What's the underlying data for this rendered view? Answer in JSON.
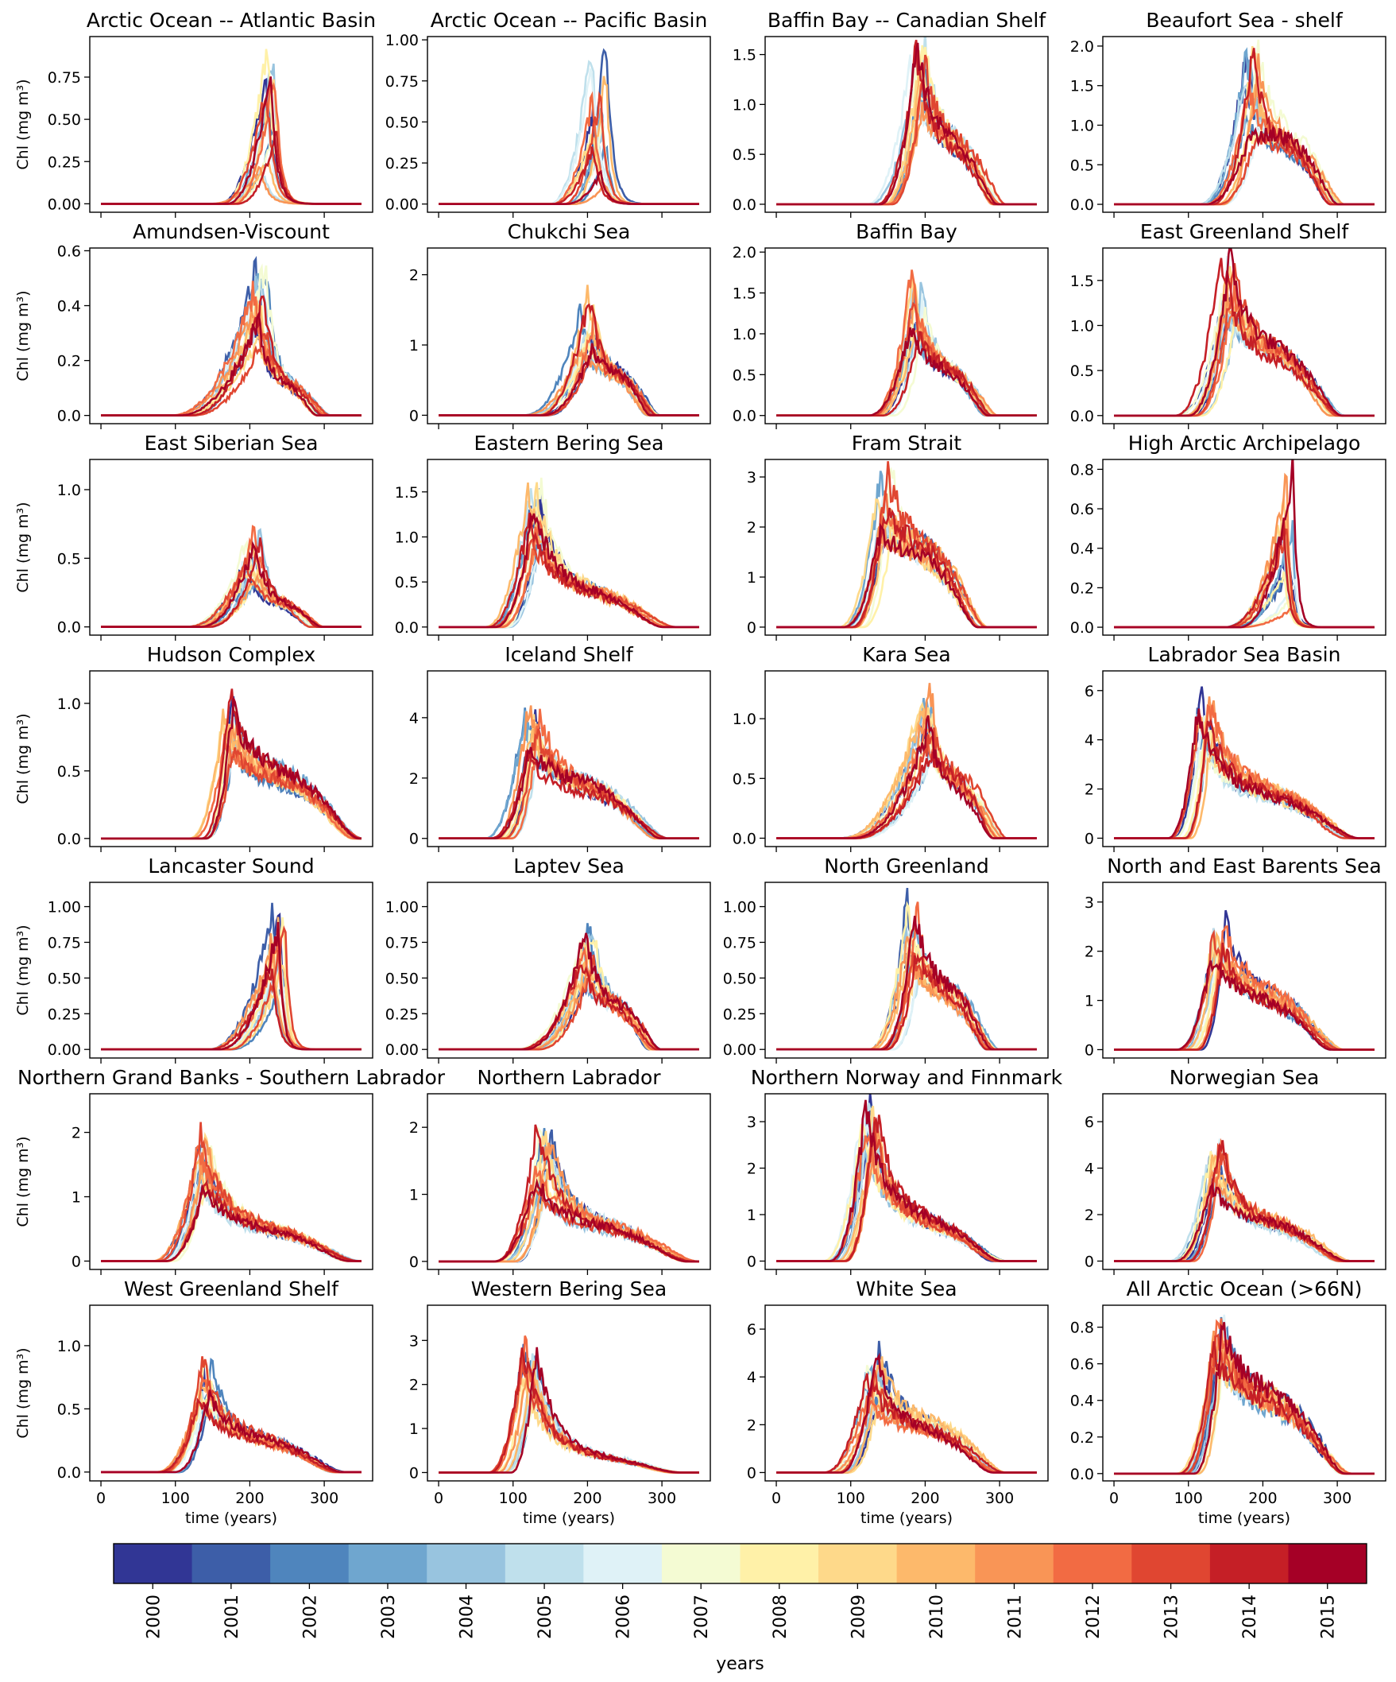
{
  "figure": {
    "colorbar_label": "years",
    "colorbar_ticks": [
      "2000",
      "2001",
      "2002",
      "2003",
      "2004",
      "2005",
      "2006",
      "2007",
      "2008",
      "2009",
      "2010",
      "2011",
      "2012",
      "2013",
      "2014",
      "2015"
    ],
    "colorbar_colors": [
      "#313695",
      "#3d5ea8",
      "#4f85bd",
      "#6fa6cf",
      "#98c4df",
      "#bfe0ec",
      "#dff2f7",
      "#f4fbd3",
      "#fff1a8",
      "#fed98a",
      "#fdb96b",
      "#f99556",
      "#f26b43",
      "#e04631",
      "#c51f26",
      "#a50026"
    ],
    "ylabel_html": "Chl (mg m³)",
    "xlabel": "time (years)"
  },
  "chart_data": [
    {
      "type": "line",
      "title": "Arctic Ocean -- Atlantic Basin",
      "xlabel": "",
      "ylabel": "Chl (mg m3)",
      "xlim": [
        -15,
        365
      ],
      "ylim": [
        -0.05,
        0.99
      ],
      "yticks": [
        "0.00",
        "0.25",
        "0.50",
        "0.75"
      ],
      "ytick_values": [
        0,
        0.25,
        0.5,
        0.75
      ],
      "profile": {
        "onset": 165,
        "peak_day": 225,
        "peak": 0.62,
        "end": 285,
        "tail": 0.0,
        "spread": 0.75
      }
    },
    {
      "type": "line",
      "title": "Arctic Ocean -- Pacific Basin",
      "xlabel": "",
      "ylabel": "",
      "xlim": [
        -15,
        365
      ],
      "ylim": [
        -0.05,
        1.02
      ],
      "yticks": [
        "0.00",
        "0.25",
        "0.50",
        "0.75",
        "1.00"
      ],
      "ytick_values": [
        0,
        0.25,
        0.5,
        0.75,
        1.0
      ],
      "profile": {
        "onset": 165,
        "peak_day": 215,
        "peak": 0.6,
        "end": 275,
        "tail": 0.0,
        "spread": 0.9
      }
    },
    {
      "type": "line",
      "title": "Baffin Bay -- Canadian Shelf",
      "xlabel": "",
      "ylabel": "",
      "xlim": [
        -15,
        365
      ],
      "ylim": [
        -0.08,
        1.68
      ],
      "yticks": [
        "0.0",
        "0.5",
        "1.0",
        "1.5"
      ],
      "ytick_values": [
        0,
        0.5,
        1.0,
        1.5
      ],
      "profile": {
        "onset": 140,
        "peak_day": 190,
        "peak": 1.3,
        "end": 300,
        "tail": 0.5,
        "spread": 0.35
      }
    },
    {
      "type": "line",
      "title": "Beaufort Sea - shelf",
      "xlabel": "",
      "ylabel": "",
      "xlim": [
        -15,
        365
      ],
      "ylim": [
        -0.1,
        2.12
      ],
      "yticks": [
        "0.0",
        "0.5",
        "1.0",
        "1.5",
        "2.0"
      ],
      "ytick_values": [
        0,
        0.5,
        1.0,
        1.5,
        2.0
      ],
      "profile": {
        "onset": 130,
        "peak_day": 185,
        "peak": 1.35,
        "end": 300,
        "tail": 0.6,
        "spread": 0.5
      }
    },
    {
      "type": "line",
      "title": "Amundsen-Viscount",
      "xlabel": "",
      "ylabel": "Chl (mg m3)",
      "xlim": [
        -15,
        365
      ],
      "ylim": [
        -0.03,
        0.61
      ],
      "yticks": [
        "0.0",
        "0.2",
        "0.4",
        "0.6"
      ],
      "ytick_values": [
        0,
        0.2,
        0.4,
        0.6
      ],
      "profile": {
        "onset": 110,
        "peak_day": 215,
        "peak": 0.42,
        "end": 300,
        "tail": 0.3,
        "spread": 0.4
      }
    },
    {
      "type": "line",
      "title": "Chukchi Sea",
      "xlabel": "",
      "ylabel": "",
      "xlim": [
        -15,
        365
      ],
      "ylim": [
        -0.12,
        2.38
      ],
      "yticks": [
        "0",
        "1",
        "2"
      ],
      "ytick_values": [
        0,
        1,
        2
      ],
      "profile": {
        "onset": 130,
        "peak_day": 200,
        "peak": 1.3,
        "end": 290,
        "tail": 0.5,
        "spread": 0.4
      }
    },
    {
      "type": "line",
      "title": "Baffin Bay",
      "xlabel": "",
      "ylabel": "",
      "xlim": [
        -15,
        365
      ],
      "ylim": [
        -0.1,
        2.05
      ],
      "yticks": [
        "0.0",
        "0.5",
        "1.0",
        "1.5",
        "2.0"
      ],
      "ytick_values": [
        0,
        0.5,
        1.0,
        1.5,
        2.0
      ],
      "profile": {
        "onset": 140,
        "peak_day": 190,
        "peak": 1.4,
        "end": 290,
        "tail": 0.4,
        "spread": 0.35
      }
    },
    {
      "type": "line",
      "title": "East Greenland Shelf",
      "xlabel": "",
      "ylabel": "",
      "xlim": [
        -15,
        365
      ],
      "ylim": [
        -0.09,
        1.86
      ],
      "yticks": [
        "0.0",
        "0.5",
        "1.0",
        "1.5"
      ],
      "ytick_values": [
        0,
        0.5,
        1.0,
        1.5
      ],
      "profile": {
        "onset": 100,
        "peak_day": 155,
        "peak": 1.4,
        "end": 300,
        "tail": 0.5,
        "spread": 0.3
      }
    },
    {
      "type": "line",
      "title": "East Siberian Sea",
      "xlabel": "",
      "ylabel": "Chl (mg m3)",
      "xlim": [
        -15,
        365
      ],
      "ylim": [
        -0.06,
        1.22
      ],
      "yticks": [
        "0.0",
        "0.5",
        "1.0"
      ],
      "ytick_values": [
        0,
        0.5,
        1.0
      ],
      "profile": {
        "onset": 130,
        "peak_day": 205,
        "peak": 0.6,
        "end": 290,
        "tail": 0.3,
        "spread": 0.45
      }
    },
    {
      "type": "line",
      "title": "Eastern Bering Sea",
      "xlabel": "",
      "ylabel": "",
      "xlim": [
        -15,
        365
      ],
      "ylim": [
        -0.09,
        1.86
      ],
      "yticks": [
        "0.0",
        "0.5",
        "1.0",
        "1.5"
      ],
      "ytick_values": [
        0,
        0.5,
        1.0,
        1.5
      ],
      "profile": {
        "onset": 80,
        "peak_day": 130,
        "peak": 1.3,
        "end": 310,
        "tail": 0.3,
        "spread": 0.3
      }
    },
    {
      "type": "line",
      "title": "Fram Strait",
      "xlabel": "",
      "ylabel": "",
      "xlim": [
        -15,
        365
      ],
      "ylim": [
        -0.16,
        3.35
      ],
      "yticks": [
        "0",
        "1",
        "2",
        "3"
      ],
      "ytick_values": [
        0,
        1,
        2,
        3
      ],
      "profile": {
        "onset": 100,
        "peak_day": 145,
        "peak": 2.6,
        "end": 280,
        "tail": 0.6,
        "spread": 0.3
      }
    },
    {
      "type": "line",
      "title": "High Arctic Archipelago",
      "xlabel": "",
      "ylabel": "",
      "xlim": [
        -15,
        365
      ],
      "ylim": [
        -0.04,
        0.85
      ],
      "yticks": [
        "0.0",
        "0.2",
        "0.4",
        "0.6",
        "0.8"
      ],
      "ytick_values": [
        0,
        0.2,
        0.4,
        0.6,
        0.8
      ],
      "profile": {
        "onset": 160,
        "peak_day": 235,
        "peak": 0.45,
        "end": 275,
        "tail": 0.0,
        "spread": 0.9
      }
    },
    {
      "type": "line",
      "title": "Hudson Complex",
      "xlabel": "",
      "ylabel": "Chl (mg m3)",
      "xlim": [
        -15,
        365
      ],
      "ylim": [
        -0.06,
        1.24
      ],
      "yticks": [
        "0.0",
        "0.5",
        "1.0"
      ],
      "ytick_values": [
        0,
        0.5,
        1.0
      ],
      "profile": {
        "onset": 130,
        "peak_day": 170,
        "peak": 0.85,
        "end": 345,
        "tail": 0.55,
        "spread": 0.3
      }
    },
    {
      "type": "line",
      "title": "Iceland Shelf",
      "xlabel": "",
      "ylabel": "",
      "xlim": [
        -15,
        365
      ],
      "ylim": [
        -0.27,
        5.55
      ],
      "yticks": [
        "0",
        "2",
        "4"
      ],
      "ytick_values": [
        0,
        2,
        4
      ],
      "profile": {
        "onset": 80,
        "peak_day": 125,
        "peak": 3.6,
        "end": 300,
        "tail": 0.5,
        "spread": 0.3
      }
    },
    {
      "type": "line",
      "title": "Kara Sea",
      "xlabel": "",
      "ylabel": "",
      "xlim": [
        -15,
        365
      ],
      "ylim": [
        -0.07,
        1.4
      ],
      "yticks": [
        "0.0",
        "0.5",
        "1.0"
      ],
      "ytick_values": [
        0,
        0.5,
        1.0
      ],
      "profile": {
        "onset": 100,
        "peak_day": 205,
        "peak": 0.95,
        "end": 300,
        "tail": 0.5,
        "spread": 0.35
      }
    },
    {
      "type": "line",
      "title": "Labrador Sea Basin",
      "xlabel": "",
      "ylabel": "",
      "xlim": [
        -15,
        365
      ],
      "ylim": [
        -0.34,
        6.8
      ],
      "yticks": [
        "0",
        "2",
        "4",
        "6"
      ],
      "ytick_values": [
        0,
        2,
        4,
        6
      ],
      "profile": {
        "onset": 85,
        "peak_day": 120,
        "peak": 4.6,
        "end": 320,
        "tail": 0.4,
        "spread": 0.3
      }
    },
    {
      "type": "line",
      "title": "Lancaster Sound",
      "xlabel": "",
      "ylabel": "Chl (mg m3)",
      "xlim": [
        -15,
        365
      ],
      "ylim": [
        -0.06,
        1.17
      ],
      "yticks": [
        "0.00",
        "0.25",
        "0.50",
        "0.75",
        "1.00"
      ],
      "ytick_values": [
        0,
        0.25,
        0.5,
        0.75,
        1.0
      ],
      "profile": {
        "onset": 160,
        "peak_day": 240,
        "peak": 0.75,
        "end": 285,
        "tail": 0.0,
        "spread": 0.35
      }
    },
    {
      "type": "line",
      "title": "Laptev Sea",
      "xlabel": "",
      "ylabel": "",
      "xlim": [
        -15,
        365
      ],
      "ylim": [
        -0.06,
        1.17
      ],
      "yticks": [
        "0.00",
        "0.25",
        "0.50",
        "0.75",
        "1.00"
      ],
      "ytick_values": [
        0,
        0.25,
        0.5,
        0.75,
        1.0
      ],
      "profile": {
        "onset": 120,
        "peak_day": 200,
        "peak": 0.7,
        "end": 290,
        "tail": 0.45,
        "spread": 0.35
      }
    },
    {
      "type": "line",
      "title": "North Greenland",
      "xlabel": "",
      "ylabel": "",
      "xlim": [
        -15,
        365
      ],
      "ylim": [
        -0.06,
        1.17
      ],
      "yticks": [
        "0.00",
        "0.25",
        "0.50",
        "0.75",
        "1.00"
      ],
      "ytick_values": [
        0,
        0.25,
        0.5,
        0.75,
        1.0
      ],
      "profile": {
        "onset": 140,
        "peak_day": 185,
        "peak": 0.85,
        "end": 290,
        "tail": 0.5,
        "spread": 0.3
      }
    },
    {
      "type": "line",
      "title": "North and East Barents Sea",
      "xlabel": "",
      "ylabel": "",
      "xlim": [
        -15,
        365
      ],
      "ylim": [
        -0.17,
        3.4
      ],
      "yticks": [
        "0",
        "1",
        "2",
        "3"
      ],
      "ytick_values": [
        0,
        1,
        2,
        3
      ],
      "profile": {
        "onset": 100,
        "peak_day": 140,
        "peak": 2.2,
        "end": 300,
        "tail": 0.5,
        "spread": 0.25
      }
    },
    {
      "type": "line",
      "title": "Northern Grand Banks - Southern Labrador",
      "xlabel": "",
      "ylabel": "Chl (mg m3)",
      "xlim": [
        -15,
        365
      ],
      "ylim": [
        -0.13,
        2.6
      ],
      "yticks": [
        "0",
        "1",
        "2"
      ],
      "ytick_values": [
        0,
        1,
        2
      ],
      "profile": {
        "onset": 80,
        "peak_day": 135,
        "peak": 1.7,
        "end": 340,
        "tail": 0.3,
        "spread": 0.35
      }
    },
    {
      "type": "line",
      "title": "Northern Labrador",
      "xlabel": "",
      "ylabel": "",
      "xlim": [
        -15,
        365
      ],
      "ylim": [
        -0.12,
        2.5
      ],
      "yticks": [
        "0",
        "1",
        "2"
      ],
      "ytick_values": [
        0,
        1,
        2
      ],
      "profile": {
        "onset": 90,
        "peak_day": 140,
        "peak": 1.5,
        "end": 340,
        "tail": 0.35,
        "spread": 0.35
      }
    },
    {
      "type": "line",
      "title": "Northern Norway and Finnmark",
      "xlabel": "",
      "ylabel": "",
      "xlim": [
        -15,
        365
      ],
      "ylim": [
        -0.18,
        3.6
      ],
      "yticks": [
        "0",
        "1",
        "2",
        "3"
      ],
      "ytick_values": [
        0,
        1,
        2,
        3
      ],
      "profile": {
        "onset": 80,
        "peak_day": 125,
        "peak": 2.8,
        "end": 300,
        "tail": 0.3,
        "spread": 0.25
      }
    },
    {
      "type": "line",
      "title": "Norwegian Sea",
      "xlabel": "",
      "ylabel": "",
      "xlim": [
        -15,
        365
      ],
      "ylim": [
        -0.36,
        7.2
      ],
      "yticks": [
        "0",
        "2",
        "4",
        "6"
      ],
      "ytick_values": [
        0,
        2,
        4,
        6
      ],
      "profile": {
        "onset": 90,
        "peak_day": 135,
        "peak": 4.2,
        "end": 310,
        "tail": 0.4,
        "spread": 0.3
      }
    },
    {
      "type": "line",
      "title": "West Greenland Shelf",
      "xlabel": "",
      "ylabel": "Chl (mg m3)",
      "xlim": [
        -15,
        365
      ],
      "ylim": [
        -0.07,
        1.32
      ],
      "yticks": [
        "0.0",
        "0.5",
        "1.0"
      ],
      "ytick_values": [
        0,
        0.5,
        1.0
      ],
      "profile": {
        "onset": 90,
        "peak_day": 140,
        "peak": 0.75,
        "end": 320,
        "tail": 0.35,
        "spread": 0.35
      }
    },
    {
      "type": "line",
      "title": "Western Bering Sea",
      "xlabel": "",
      "ylabel": "",
      "xlim": [
        -15,
        365
      ],
      "ylim": [
        -0.19,
        3.8
      ],
      "yticks": [
        "0",
        "1",
        "2",
        "3"
      ],
      "ytick_values": [
        0,
        1,
        2,
        3
      ],
      "profile": {
        "onset": 80,
        "peak_day": 120,
        "peak": 2.4,
        "end": 320,
        "tail": 0.15,
        "spread": 0.25
      }
    },
    {
      "type": "line",
      "title": "White Sea",
      "xlabel": "time (years)",
      "ylabel": "",
      "xlim": [
        -15,
        365
      ],
      "ylim": [
        -0.35,
        7.0
      ],
      "yticks": [
        "0",
        "2",
        "4",
        "6"
      ],
      "ytick_values": [
        0,
        2,
        4,
        6
      ],
      "profile": {
        "onset": 80,
        "peak_day": 130,
        "peak": 4.0,
        "end": 300,
        "tail": 0.5,
        "spread": 0.4
      }
    },
    {
      "type": "line",
      "title": "All Arctic Ocean (>66N)",
      "xlabel": "time (years)",
      "ylabel": "",
      "xlim": [
        -15,
        365
      ],
      "ylim": [
        -0.04,
        0.92
      ],
      "yticks": [
        "0.0",
        "0.2",
        "0.4",
        "0.6",
        "0.8"
      ],
      "ytick_values": [
        0,
        0.2,
        0.4,
        0.6,
        0.8
      ],
      "profile": {
        "onset": 100,
        "peak_day": 140,
        "peak": 0.75,
        "end": 310,
        "tail": 0.55,
        "spread": 0.2
      }
    }
  ],
  "xticks": [
    "0",
    "100",
    "200",
    "300"
  ],
  "xtick_values": [
    0,
    100,
    200,
    300
  ]
}
